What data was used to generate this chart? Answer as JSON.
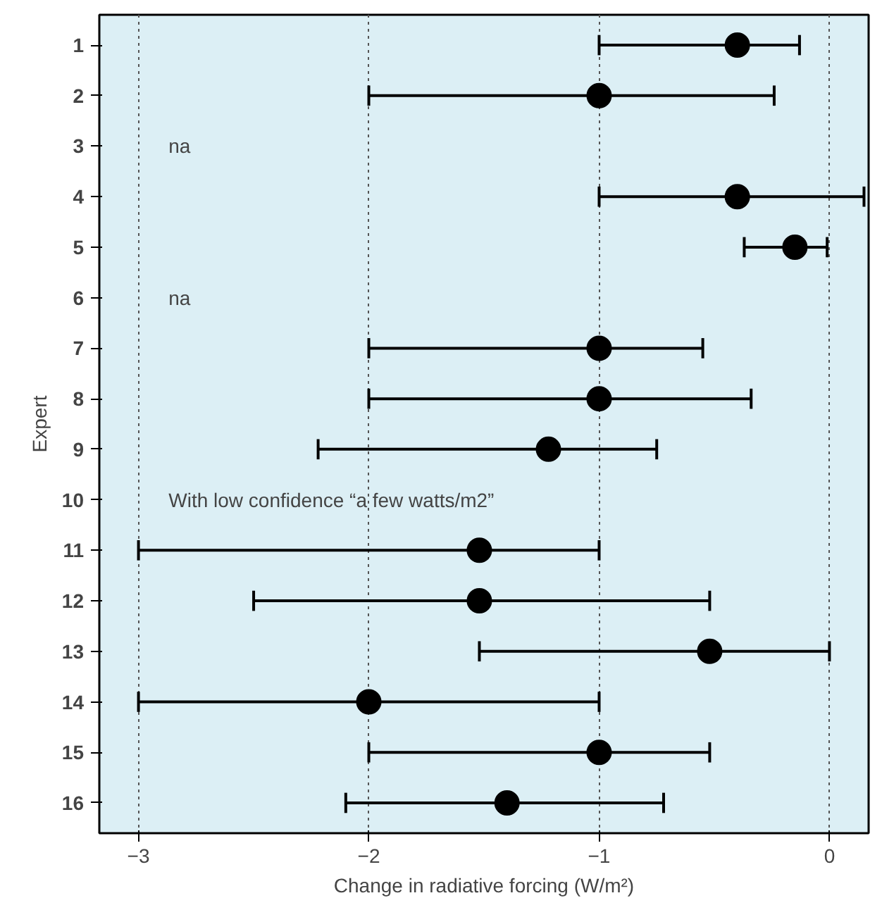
{
  "chart_data": {
    "type": "scatter",
    "orientation": "horizontal",
    "xlabel": "Change in radiative forcing (W/m²)",
    "ylabel": "Expert",
    "categories": [
      "1",
      "2",
      "3",
      "4",
      "5",
      "6",
      "7",
      "8",
      "9",
      "10",
      "11",
      "12",
      "13",
      "14",
      "15",
      "16"
    ],
    "values": [
      -0.4,
      -1.0,
      null,
      -0.4,
      -0.15,
      null,
      -1.0,
      -1.0,
      -1.22,
      null,
      -1.52,
      -1.52,
      -0.52,
      -2.0,
      -1.0,
      -1.4
    ],
    "errors": [
      [
        -1.0,
        -0.13
      ],
      [
        -2.0,
        -0.24
      ],
      null,
      [
        -1.0,
        0.15
      ],
      [
        -0.37,
        -0.01
      ],
      null,
      [
        -2.0,
        -0.55
      ],
      [
        -2.0,
        -0.34
      ],
      [
        -2.22,
        -0.75
      ],
      null,
      [
        -3.0,
        -1.0
      ],
      [
        -2.5,
        -0.52
      ],
      [
        -1.52,
        0.0
      ],
      [
        -3.0,
        -1.0
      ],
      [
        -2.0,
        -0.52
      ],
      [
        -2.1,
        -0.72
      ]
    ],
    "color": "#000000",
    "marker": "circle",
    "xlim": [
      -3.17,
      0.17
    ],
    "xticks": [
      {
        "value": -3,
        "label": "−3"
      },
      {
        "value": -2,
        "label": "−2"
      },
      {
        "value": -1,
        "label": "−1"
      },
      0
    ],
    "grid": "x",
    "annotations": [
      "na",
      "na",
      "With low confidence “a few watts/m2”"
    ]
  }
}
